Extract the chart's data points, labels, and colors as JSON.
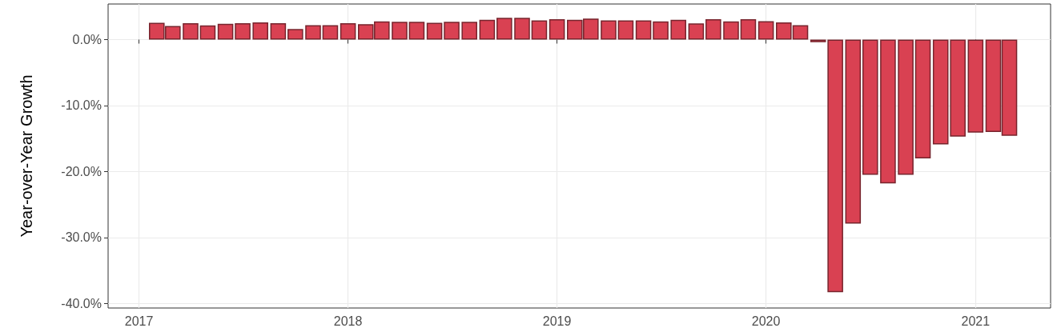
{
  "chart_data": {
    "type": "bar",
    "ylabel": "Year-over-Year Growth",
    "x": [
      "2017-02",
      "2017-03",
      "2017-04",
      "2017-05",
      "2017-06",
      "2017-07",
      "2017-08",
      "2017-09",
      "2017-10",
      "2017-11",
      "2017-12",
      "2018-01",
      "2018-02",
      "2018-03",
      "2018-04",
      "2018-05",
      "2018-06",
      "2018-07",
      "2018-08",
      "2018-09",
      "2018-10",
      "2018-11",
      "2018-12",
      "2019-01",
      "2019-02",
      "2019-03",
      "2019-04",
      "2019-05",
      "2019-06",
      "2019-07",
      "2019-08",
      "2019-09",
      "2019-10",
      "2019-11",
      "2019-12",
      "2020-01",
      "2020-02",
      "2020-03",
      "2020-04",
      "2020-05",
      "2020-06",
      "2020-07",
      "2020-08",
      "2020-09",
      "2020-10",
      "2020-11",
      "2020-12",
      "2021-01",
      "2021-02",
      "2021-03"
    ],
    "values": [
      2.55,
      2.05,
      2.5,
      2.15,
      2.4,
      2.5,
      2.6,
      2.5,
      1.6,
      2.2,
      2.2,
      2.5,
      2.35,
      2.75,
      2.7,
      2.7,
      2.55,
      2.7,
      2.7,
      3.0,
      3.3,
      3.3,
      2.9,
      3.1,
      3.0,
      3.2,
      2.9,
      2.9,
      2.9,
      2.75,
      3.0,
      2.45,
      3.1,
      2.75,
      3.1,
      2.8,
      2.6,
      2.2,
      -0.4,
      -38.3,
      -27.9,
      -20.5,
      -21.8,
      -20.5,
      -18.0,
      -15.9,
      -14.7,
      -14.1,
      -14.0,
      -14.6
    ],
    "color": "#d94152",
    "xlim": [
      "2016-11-08",
      "2021-05-12"
    ],
    "xticks": [
      "2017",
      "2018",
      "2019",
      "2020",
      "2021"
    ],
    "ylim": [
      -40.7,
      5.4
    ],
    "yticks": [
      {
        "value": -40,
        "label": "-40.0%"
      },
      {
        "value": -30,
        "label": "-30.0%"
      },
      {
        "value": -20,
        "label": "-20.0%"
      },
      {
        "value": -10,
        "label": "-10.0%"
      },
      {
        "value": 0,
        "label": "0.0%"
      }
    ],
    "grid": true
  }
}
